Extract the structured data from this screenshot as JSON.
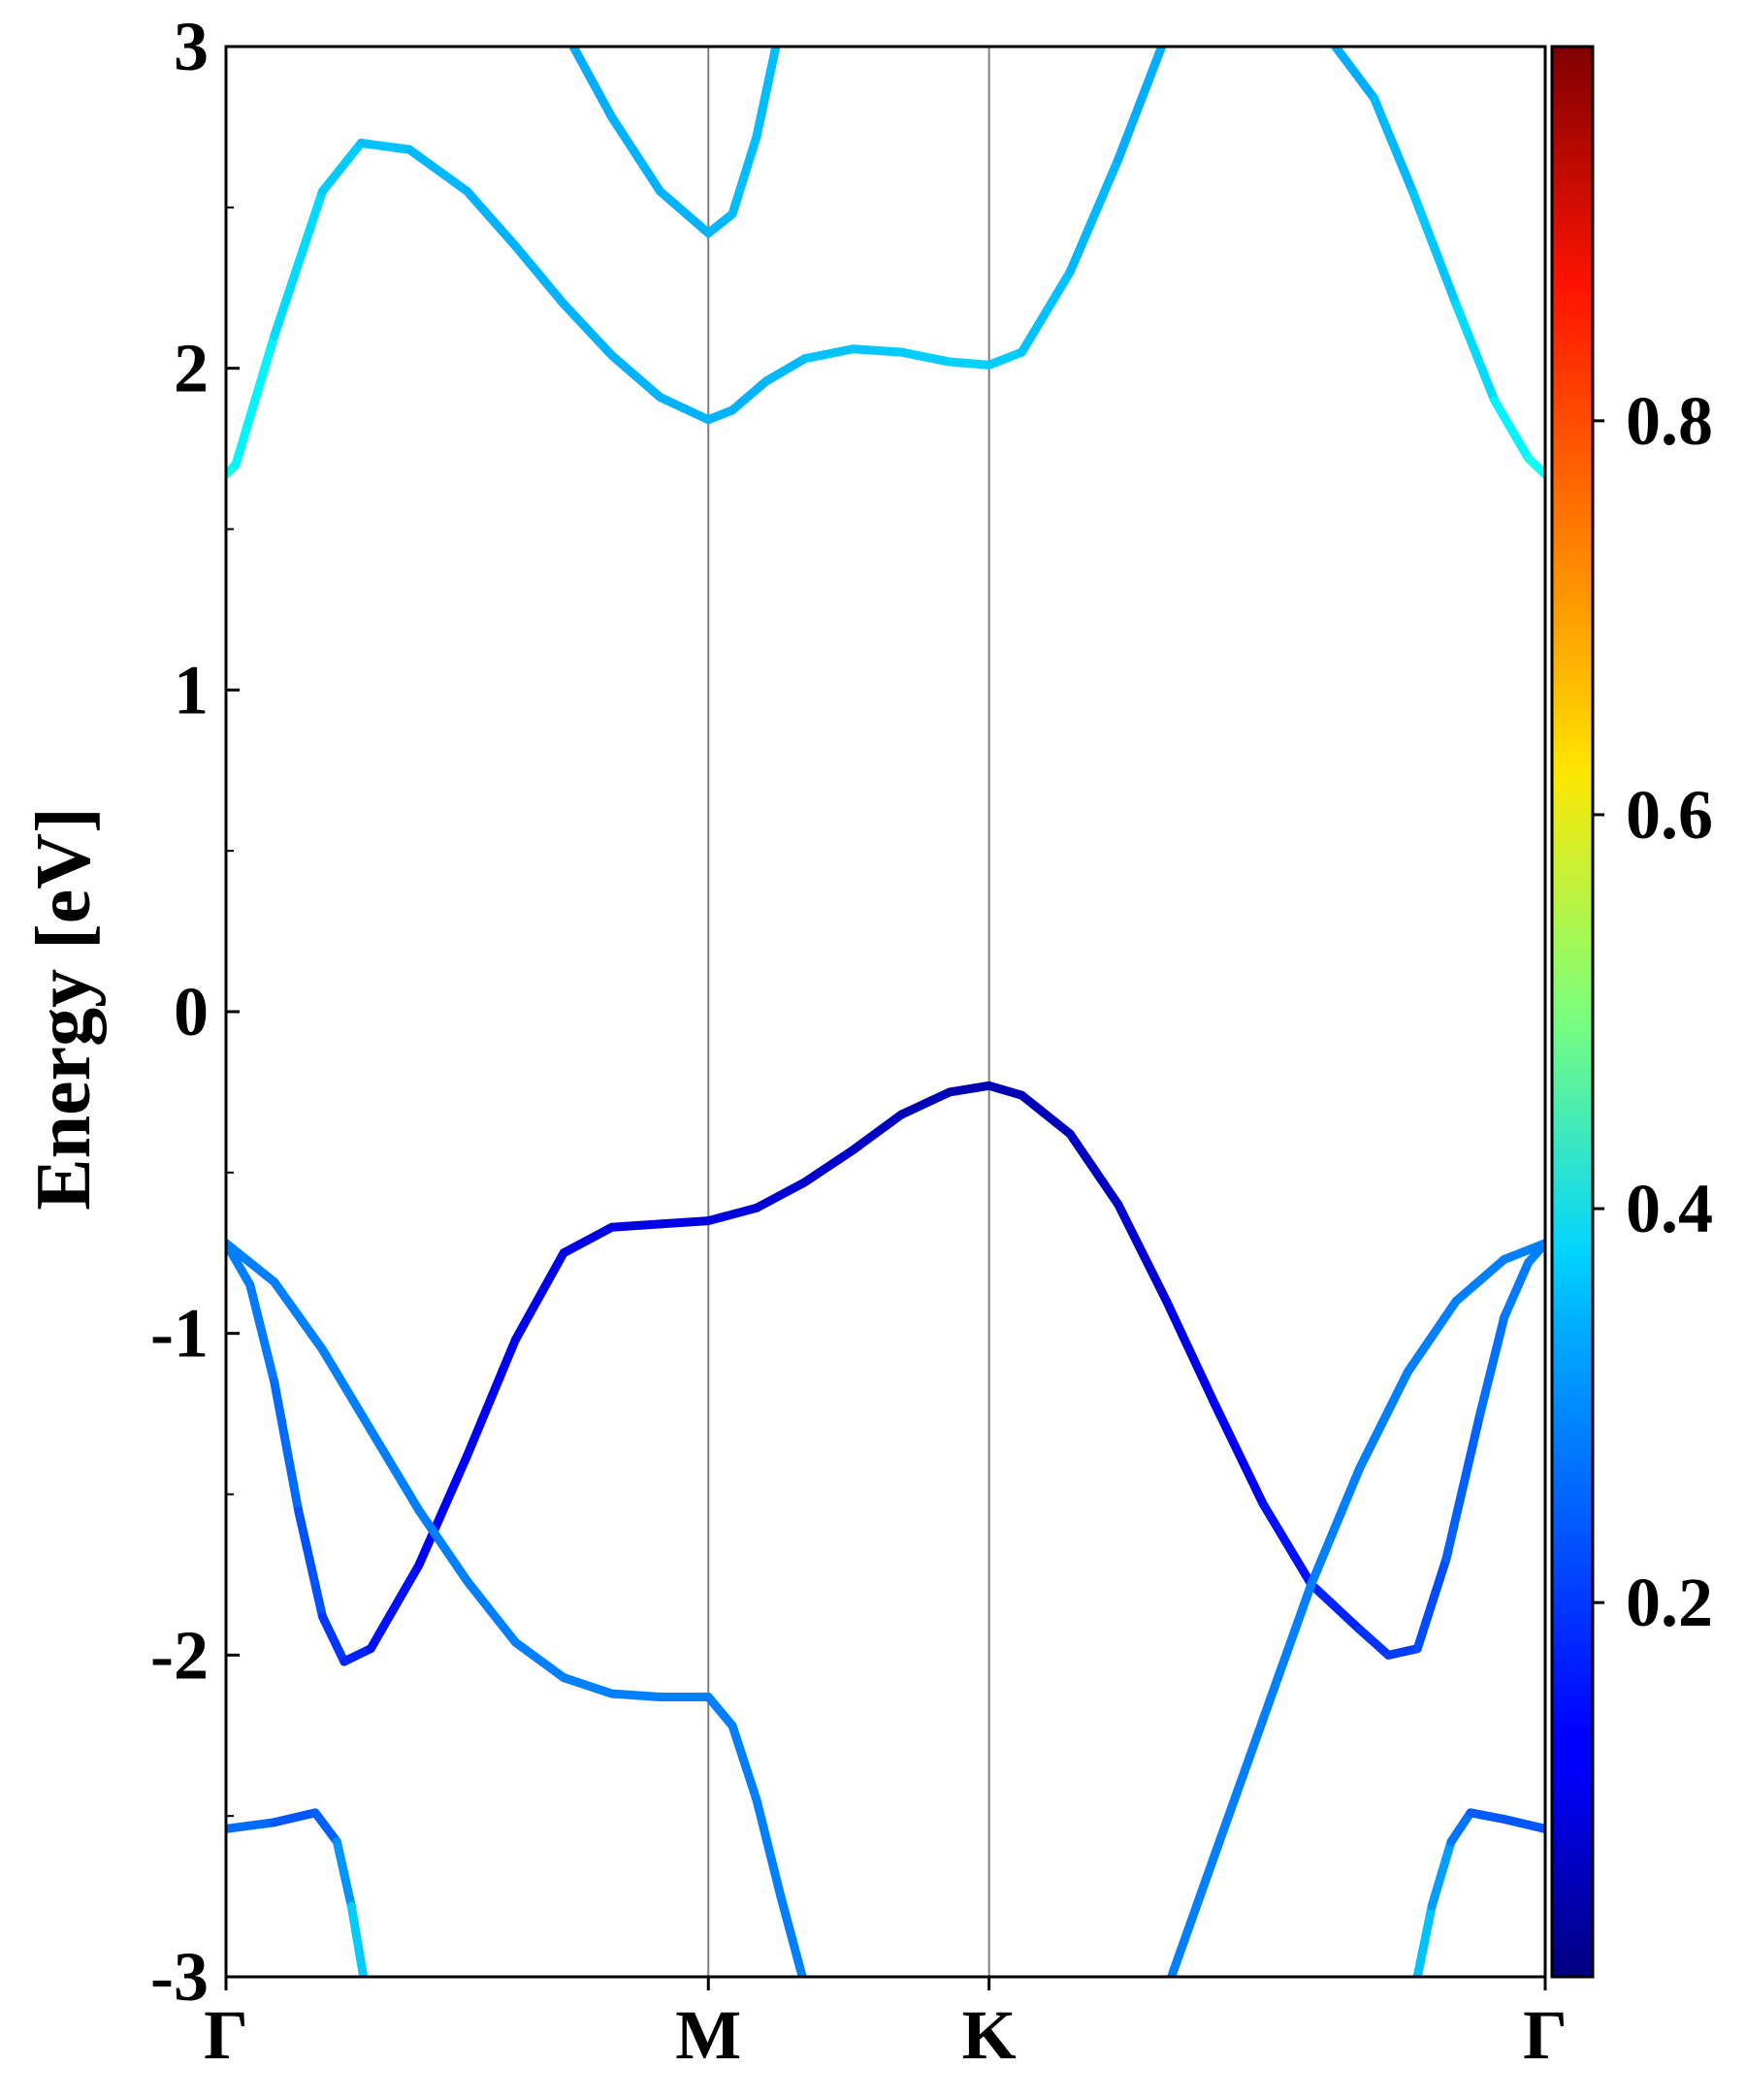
{
  "chart_data": {
    "type": "line",
    "title": "",
    "xlabel": "",
    "ylabel": "Energy [eV]",
    "ylim": [
      -3,
      3
    ],
    "yticks": [
      {
        "value": 3,
        "label": "3"
      },
      {
        "value": 2,
        "label": "2"
      },
      {
        "value": 1,
        "label": "1"
      },
      {
        "value": 0,
        "label": "0"
      },
      {
        "value": -1,
        "label": "-1"
      },
      {
        "value": -2,
        "label": "-2"
      },
      {
        "value": -3,
        "label": "-3"
      }
    ],
    "yminor": [
      2.5,
      1.5,
      0.5,
      -0.5,
      -1.5,
      -2.5
    ],
    "kpoints": [
      {
        "label": "Γ",
        "k": 0
      },
      {
        "label": "M",
        "k": 1
      },
      {
        "label": "K",
        "k": 1.582
      },
      {
        "label": "Γ",
        "k": 2.735
      }
    ],
    "grid": "vertical lines at high-symmetry points",
    "colorbar": {
      "colormap": "jet",
      "range": [
        0.01,
        0.99
      ],
      "ticks": [
        {
          "value": 0.2,
          "label": "0.2"
        },
        {
          "value": 0.4,
          "label": "0.4"
        },
        {
          "value": 0.6,
          "label": "0.6"
        },
        {
          "value": 0.8,
          "label": "0.8"
        }
      ]
    },
    "series": [
      {
        "points": [
          [
            0,
            -2.54,
            0.24
          ],
          [
            0.1,
            -2.52,
            0.22
          ],
          [
            0.185,
            -2.49,
            0.2
          ],
          [
            0.23,
            -2.58,
            0.24
          ],
          [
            0.26,
            -2.78,
            0.3
          ],
          [
            0.285,
            -3.0,
            0.35
          ]
        ]
      },
      {
        "points": [
          [
            0,
            -0.72,
            0.25
          ],
          [
            0.05,
            -0.85,
            0.25
          ],
          [
            0.1,
            -1.15,
            0.24
          ],
          [
            0.15,
            -1.55,
            0.22
          ],
          [
            0.2,
            -1.88,
            0.19
          ],
          [
            0.245,
            -2.02,
            0.17
          ],
          [
            0.3,
            -1.98,
            0.15
          ],
          [
            0.4,
            -1.72,
            0.13
          ],
          [
            0.5,
            -1.38,
            0.12
          ],
          [
            0.6,
            -1.02,
            0.11
          ],
          [
            0.7,
            -0.75,
            0.1
          ],
          [
            0.8,
            -0.67,
            0.1
          ],
          [
            0.9,
            -0.66,
            0.1
          ],
          [
            1.0,
            -0.65,
            0.1
          ],
          [
            1.1,
            -0.61,
            0.09
          ],
          [
            1.2,
            -0.53,
            0.08
          ],
          [
            1.3,
            -0.43,
            0.07
          ],
          [
            1.4,
            -0.32,
            0.06
          ],
          [
            1.5,
            -0.25,
            0.05
          ],
          [
            1.582,
            -0.23,
            0.05
          ],
          [
            1.65,
            -0.26,
            0.05
          ],
          [
            1.75,
            -0.38,
            0.06
          ],
          [
            1.85,
            -0.6,
            0.07
          ],
          [
            1.95,
            -0.9,
            0.09
          ],
          [
            2.05,
            -1.22,
            0.11
          ],
          [
            2.15,
            -1.53,
            0.13
          ],
          [
            2.25,
            -1.78,
            0.15
          ],
          [
            2.35,
            -1.92,
            0.17
          ],
          [
            2.41,
            -2.0,
            0.18
          ],
          [
            2.47,
            -1.98,
            0.19
          ],
          [
            2.53,
            -1.7,
            0.21
          ],
          [
            2.6,
            -1.25,
            0.23
          ],
          [
            2.65,
            -0.95,
            0.24
          ],
          [
            2.7,
            -0.78,
            0.25
          ],
          [
            2.735,
            -0.72,
            0.25
          ]
        ]
      },
      {
        "points": [
          [
            0,
            -0.72,
            0.25
          ],
          [
            0.1,
            -0.84,
            0.25
          ],
          [
            0.2,
            -1.05,
            0.25
          ],
          [
            0.3,
            -1.3,
            0.25
          ],
          [
            0.4,
            -1.55,
            0.25
          ],
          [
            0.5,
            -1.77,
            0.25
          ],
          [
            0.6,
            -1.96,
            0.25
          ],
          [
            0.7,
            -2.07,
            0.25
          ],
          [
            0.8,
            -2.12,
            0.25
          ],
          [
            0.9,
            -2.13,
            0.25
          ],
          [
            1.0,
            -2.13,
            0.25
          ],
          [
            1.05,
            -2.22,
            0.25
          ],
          [
            1.1,
            -2.45,
            0.25
          ],
          [
            1.15,
            -2.75,
            0.25
          ],
          [
            1.195,
            -3.0,
            0.25
          ]
        ]
      },
      {
        "points": [
          [
            1.96,
            -3.0,
            0.25
          ],
          [
            2.05,
            -2.62,
            0.25
          ],
          [
            2.15,
            -2.2,
            0.25
          ],
          [
            2.25,
            -1.78,
            0.25
          ],
          [
            2.35,
            -1.42,
            0.25
          ],
          [
            2.45,
            -1.12,
            0.25
          ],
          [
            2.55,
            -0.9,
            0.25
          ],
          [
            2.65,
            -0.77,
            0.25
          ],
          [
            2.735,
            -0.72,
            0.25
          ]
        ]
      },
      {
        "points": [
          [
            2.47,
            -3.0,
            0.33
          ],
          [
            2.5,
            -2.78,
            0.3
          ],
          [
            2.54,
            -2.58,
            0.26
          ],
          [
            2.58,
            -2.49,
            0.22
          ],
          [
            2.65,
            -2.51,
            0.21
          ],
          [
            2.735,
            -2.54,
            0.21
          ]
        ]
      },
      {
        "points": [
          [
            0,
            1.67,
            0.4
          ],
          [
            0.02,
            1.7,
            0.38
          ],
          [
            0.1,
            2.1,
            0.35
          ],
          [
            0.2,
            2.55,
            0.33
          ],
          [
            0.28,
            2.7,
            0.32
          ],
          [
            0.38,
            2.68,
            0.31
          ],
          [
            0.5,
            2.55,
            0.3
          ],
          [
            0.6,
            2.38,
            0.3
          ],
          [
            0.7,
            2.2,
            0.3
          ],
          [
            0.8,
            2.04,
            0.3
          ],
          [
            0.9,
            1.91,
            0.3
          ],
          [
            1.0,
            1.84,
            0.3
          ],
          [
            1.05,
            1.87,
            0.3
          ],
          [
            1.12,
            1.96,
            0.3
          ],
          [
            1.2,
            2.03,
            0.31
          ],
          [
            1.3,
            2.06,
            0.32
          ],
          [
            1.4,
            2.05,
            0.32
          ],
          [
            1.5,
            2.02,
            0.33
          ],
          [
            1.582,
            2.01,
            0.33
          ],
          [
            1.65,
            2.05,
            0.32
          ],
          [
            1.75,
            2.3,
            0.31
          ],
          [
            1.85,
            2.65,
            0.3
          ],
          [
            1.94,
            3.0,
            0.29
          ]
        ]
      },
      {
        "points": [
          [
            0.72,
            3.0,
            0.29
          ],
          [
            0.8,
            2.78,
            0.3
          ],
          [
            0.9,
            2.55,
            0.3
          ],
          [
            1.0,
            2.42,
            0.3
          ],
          [
            1.05,
            2.48,
            0.31
          ],
          [
            1.1,
            2.72,
            0.31
          ],
          [
            1.14,
            3.0,
            0.31
          ]
        ]
      },
      {
        "points": [
          [
            2.3,
            3.0,
            0.29
          ],
          [
            2.38,
            2.84,
            0.3
          ],
          [
            2.46,
            2.55,
            0.31
          ],
          [
            2.55,
            2.2,
            0.33
          ],
          [
            2.63,
            1.9,
            0.35
          ],
          [
            2.7,
            1.72,
            0.38
          ],
          [
            2.735,
            1.67,
            0.4
          ]
        ]
      }
    ]
  }
}
